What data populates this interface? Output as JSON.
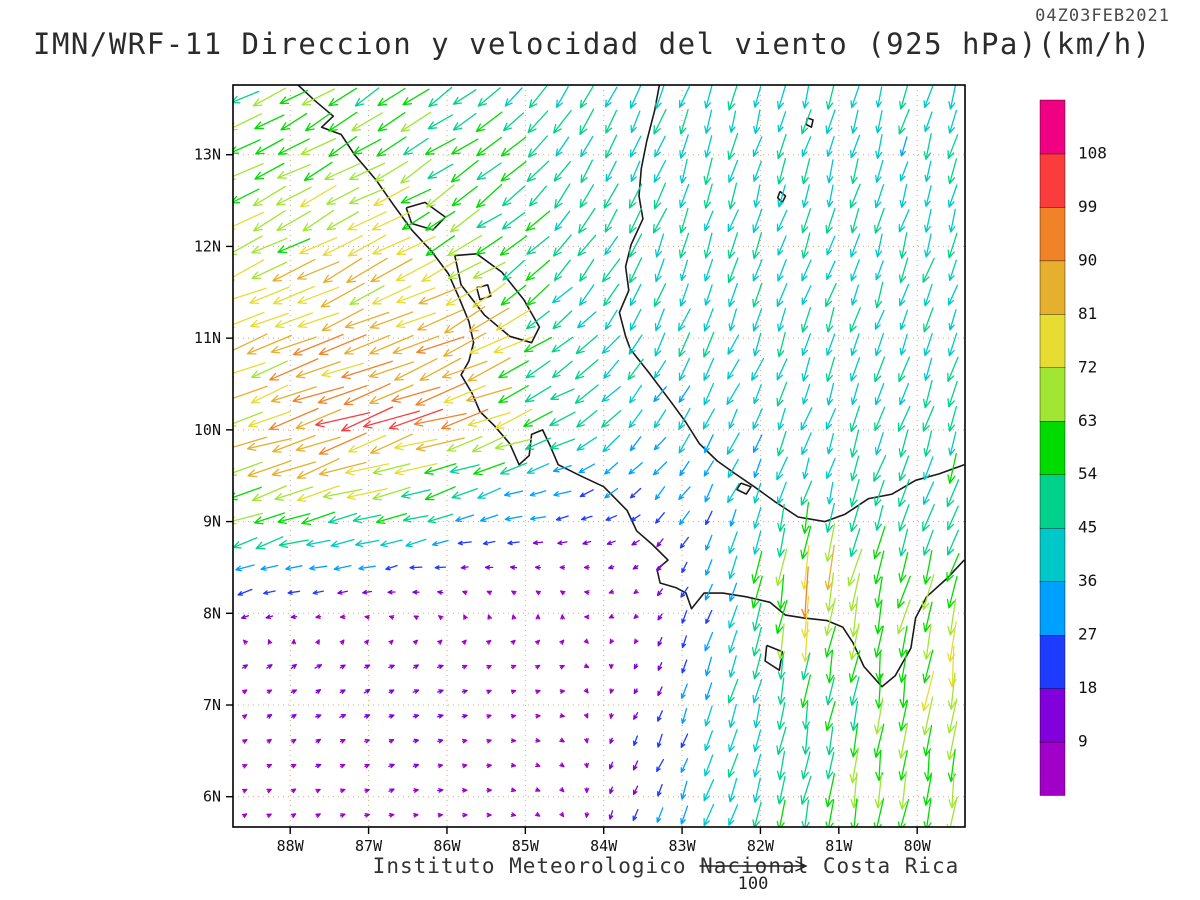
{
  "header": {
    "title": "IMN/WRF-11 Direccion y velocidad del viento (925 hPa)(km/h)",
    "timestamp": "04Z03FEB2021"
  },
  "footer": {
    "institution": "Instituto Meteorologico Nacional Costa Rica",
    "reference_label": "100"
  },
  "chart_data": {
    "type": "vector_field_map",
    "title": "IMN/WRF-11 Direccion y velocidad del viento (925 hPa)(km/h)",
    "valid_time": "04Z03FEB2021",
    "variable": "wind direction and speed",
    "level_hpa": 925,
    "units": "km/h",
    "reference_vector_kmh": 100,
    "lon_range": [
      -88.73,
      -79.39
    ],
    "lat_range": [
      5.67,
      13.76
    ],
    "x_ticks": {
      "labels": [
        "88W",
        "87W",
        "86W",
        "85W",
        "84W",
        "83W",
        "82W",
        "81W",
        "80W"
      ],
      "lons": [
        -88,
        -87,
        -86,
        -85,
        -84,
        -83,
        -82,
        -81,
        -80
      ]
    },
    "y_ticks": {
      "labels": [
        "13N",
        "12N",
        "11N",
        "10N",
        "9N",
        "8N",
        "7N",
        "6N"
      ],
      "lats": [
        13,
        12,
        11,
        10,
        9,
        8,
        7,
        6
      ]
    },
    "colorbar": {
      "levels": [
        9,
        18,
        27,
        36,
        45,
        54,
        63,
        72,
        81,
        90,
        99,
        108
      ],
      "labels": [
        "9",
        "18",
        "27",
        "36",
        "45",
        "54",
        "63",
        "72",
        "81",
        "90",
        "99",
        "108"
      ],
      "colors": [
        "#a000c8",
        "#8200dc",
        "#1e3cff",
        "#00a0ff",
        "#00c8c8",
        "#00d28c",
        "#00dc00",
        "#a0e632",
        "#e6dc32",
        "#e6af2d",
        "#f08228",
        "#fa3c3c",
        "#f00082"
      ]
    },
    "wind_grid": {
      "lons": [
        -88.73,
        -87.69,
        -86.65,
        -85.62,
        -84.58,
        -83.54,
        -82.5,
        -81.47,
        -80.43,
        -79.39
      ],
      "lats": [
        13.76,
        12.86,
        11.96,
        11.07,
        10.17,
        9.27,
        8.37,
        7.47,
        6.57,
        5.67
      ],
      "u": [
        [
          -50,
          -52,
          -46,
          -40,
          -26,
          -16,
          -13,
          -12,
          -12,
          -12
        ],
        [
          -56,
          -59,
          -53,
          -45,
          -28,
          -17,
          -13,
          -12,
          -12,
          -12
        ],
        [
          -60,
          -66,
          -63,
          -51,
          -31,
          -18,
          -14,
          -13,
          -13,
          -13
        ],
        [
          -70,
          -79,
          -81,
          -72,
          -41,
          -22,
          -16,
          -14,
          -14,
          -14
        ],
        [
          -72,
          -86,
          -93,
          -85,
          -46,
          -25,
          -18,
          -15,
          -15,
          -15
        ],
        [
          -64,
          -70,
          -60,
          -40,
          -27,
          -18,
          -15,
          -12,
          -14,
          -16
        ],
        [
          -30,
          -25,
          -15,
          -8,
          -5,
          -8,
          -12,
          -14,
          -16,
          -18
        ],
        [
          8,
          10,
          10,
          8,
          6,
          -4,
          -12,
          -11,
          -9,
          -11
        ],
        [
          6,
          8,
          9,
          8,
          5,
          -8,
          -12,
          -10,
          -8,
          -10
        ],
        [
          5,
          7,
          8,
          7,
          4,
          -10,
          -14,
          -12,
          -10,
          -12
        ]
      ],
      "v": [
        [
          -26,
          -29,
          -31,
          -31,
          -38,
          -42,
          -42,
          -41,
          -40,
          -40
        ],
        [
          -28,
          -31,
          -33,
          -31,
          -38,
          -42,
          -42,
          -41,
          -40,
          -40
        ],
        [
          -30,
          -33,
          -35,
          -33,
          -37,
          -41,
          -41,
          -40,
          -40,
          -40
        ],
        [
          -30,
          -33,
          -36,
          -35,
          -31,
          -38,
          -40,
          -40,
          -40,
          -42
        ],
        [
          -28,
          -30,
          -31,
          -28,
          -24,
          -30,
          -36,
          -40,
          -42,
          -45
        ],
        [
          -22,
          -22,
          -18,
          -12,
          -8,
          -15,
          -30,
          -42,
          -46,
          -48
        ],
        [
          -10,
          -6,
          -2,
          2,
          3,
          -4,
          -28,
          -88,
          -60,
          -50
        ],
        [
          5,
          6,
          5,
          4,
          3,
          -8,
          -36,
          -56,
          -62,
          -68
        ],
        [
          4,
          4,
          3,
          2,
          -2,
          -16,
          -36,
          -52,
          -60,
          -64
        ],
        [
          3,
          3,
          2,
          0,
          -5,
          -20,
          -40,
          -54,
          -60,
          -60
        ]
      ]
    },
    "coastline": [
      [
        [
          -87.95,
          13.8
        ],
        [
          -87.7,
          13.6
        ],
        [
          -87.45,
          13.42
        ],
        [
          -87.6,
          13.3
        ],
        [
          -87.35,
          13.22
        ],
        [
          -87.18,
          13.0
        ],
        [
          -86.9,
          12.72
        ],
        [
          -86.68,
          12.45
        ],
        [
          -86.45,
          12.18
        ],
        [
          -86.2,
          11.95
        ],
        [
          -85.98,
          11.7
        ],
        [
          -85.85,
          11.45
        ],
        [
          -85.72,
          11.18
        ],
        [
          -85.66,
          10.95
        ],
        [
          -85.72,
          10.75
        ],
        [
          -85.82,
          10.6
        ],
        [
          -85.68,
          10.4
        ],
        [
          -85.58,
          10.2
        ],
        [
          -85.4,
          10.05
        ],
        [
          -85.2,
          9.85
        ],
        [
          -85.08,
          9.62
        ],
        [
          -84.95,
          9.72
        ],
        [
          -84.92,
          9.95
        ],
        [
          -84.78,
          10.0
        ],
        [
          -84.68,
          9.82
        ],
        [
          -84.58,
          9.62
        ],
        [
          -84.3,
          9.5
        ],
        [
          -84.0,
          9.38
        ],
        [
          -83.7,
          9.12
        ],
        [
          -83.58,
          8.9
        ],
        [
          -83.38,
          8.75
        ],
        [
          -83.18,
          8.58
        ],
        [
          -83.32,
          8.48
        ],
        [
          -83.28,
          8.33
        ],
        [
          -83.08,
          8.28
        ],
        [
          -82.95,
          8.22
        ],
        [
          -82.88,
          8.05
        ],
        [
          -82.72,
          8.22
        ],
        [
          -82.48,
          8.22
        ],
        [
          -82.18,
          8.18
        ],
        [
          -81.88,
          8.12
        ],
        [
          -81.68,
          7.98
        ],
        [
          -81.45,
          7.95
        ],
        [
          -81.15,
          7.92
        ],
        [
          -80.95,
          7.85
        ],
        [
          -80.82,
          7.68
        ],
        [
          -80.68,
          7.42
        ],
        [
          -80.45,
          7.2
        ],
        [
          -80.28,
          7.32
        ],
        [
          -80.08,
          7.62
        ],
        [
          -80.02,
          7.95
        ],
        [
          -79.88,
          8.18
        ],
        [
          -79.62,
          8.38
        ],
        [
          -79.4,
          8.58
        ]
      ],
      [
        [
          -83.28,
          13.8
        ],
        [
          -83.35,
          13.48
        ],
        [
          -83.45,
          13.15
        ],
        [
          -83.52,
          12.85
        ],
        [
          -83.55,
          12.55
        ],
        [
          -83.5,
          12.3
        ],
        [
          -83.65,
          12.02
        ],
        [
          -83.72,
          11.78
        ],
        [
          -83.68,
          11.52
        ],
        [
          -83.8,
          11.28
        ],
        [
          -83.72,
          11.02
        ],
        [
          -83.66,
          10.88
        ],
        [
          -83.42,
          10.62
        ],
        [
          -83.12,
          10.28
        ],
        [
          -82.95,
          10.08
        ],
        [
          -82.78,
          9.85
        ],
        [
          -82.55,
          9.66
        ],
        [
          -82.32,
          9.52
        ],
        [
          -82.08,
          9.38
        ],
        [
          -81.82,
          9.22
        ],
        [
          -81.52,
          9.05
        ],
        [
          -81.18,
          9.0
        ],
        [
          -80.92,
          9.08
        ],
        [
          -80.62,
          9.25
        ],
        [
          -80.32,
          9.3
        ],
        [
          -80.02,
          9.45
        ],
        [
          -79.72,
          9.52
        ],
        [
          -79.4,
          9.62
        ]
      ],
      [
        [
          -85.9,
          11.9
        ],
        [
          -85.62,
          11.92
        ],
        [
          -85.3,
          11.72
        ],
        [
          -85.02,
          11.42
        ],
        [
          -84.82,
          11.12
        ],
        [
          -84.92,
          10.95
        ],
        [
          -85.2,
          11.02
        ],
        [
          -85.52,
          11.25
        ],
        [
          -85.82,
          11.58
        ],
        [
          -85.9,
          11.9
        ]
      ],
      [
        [
          -86.52,
          12.42
        ],
        [
          -86.28,
          12.48
        ],
        [
          -86.02,
          12.32
        ],
        [
          -86.18,
          12.18
        ],
        [
          -86.45,
          12.25
        ],
        [
          -86.52,
          12.42
        ]
      ],
      [
        [
          -85.62,
          11.55
        ],
        [
          -85.48,
          11.58
        ],
        [
          -85.44,
          11.46
        ],
        [
          -85.58,
          11.42
        ],
        [
          -85.62,
          11.55
        ]
      ],
      [
        [
          -81.92,
          7.65
        ],
        [
          -81.72,
          7.58
        ],
        [
          -81.76,
          7.38
        ],
        [
          -81.94,
          7.48
        ],
        [
          -81.92,
          7.65
        ]
      ],
      [
        [
          -82.25,
          9.42
        ],
        [
          -82.12,
          9.38
        ],
        [
          -82.18,
          9.3
        ],
        [
          -82.3,
          9.35
        ],
        [
          -82.25,
          9.42
        ]
      ],
      [
        [
          -81.4,
          13.4
        ],
        [
          -81.33,
          13.38
        ],
        [
          -81.35,
          13.3
        ],
        [
          -81.42,
          13.33
        ],
        [
          -81.4,
          13.4
        ]
      ],
      [
        [
          -81.75,
          12.6
        ],
        [
          -81.68,
          12.55
        ],
        [
          -81.72,
          12.48
        ],
        [
          -81.78,
          12.53
        ],
        [
          -81.75,
          12.6
        ]
      ]
    ],
    "style": {
      "coastline_color": "#1a1a1a",
      "gridline_color": "#d8a878",
      "frame_color": "#000000",
      "label_color": "#111111"
    }
  }
}
